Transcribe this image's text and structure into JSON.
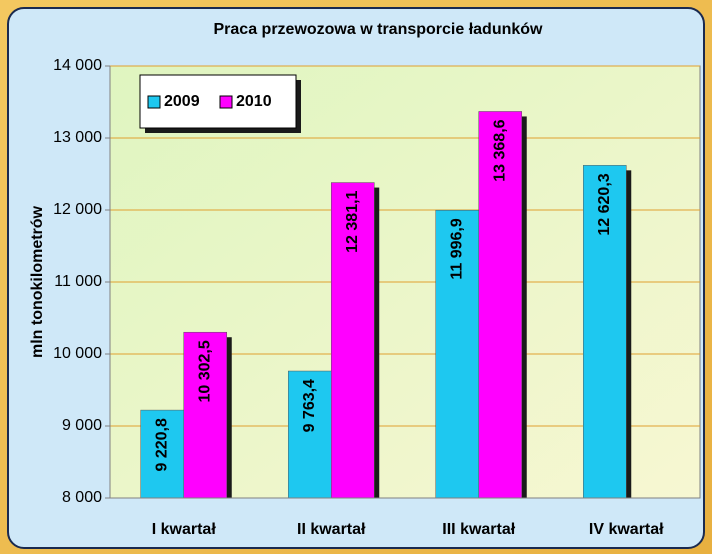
{
  "chart_data": {
    "type": "bar",
    "title": "Praca przewozowa w transporcie ładunków",
    "y_label": "mln tonokilometrów",
    "categories": [
      "I kwartał",
      "II kwartał",
      "III kwartał",
      "IV kwartał"
    ],
    "series": [
      {
        "name": "2009",
        "color": "#1ec8f0",
        "values": [
          9220.8,
          9763.4,
          11996.9,
          12620.3
        ],
        "value_labels": [
          "9 220,8",
          "9 763,4",
          "11 996,9",
          "12 620,3"
        ]
      },
      {
        "name": "2010",
        "color": "#ff00ff",
        "values": [
          10302.5,
          12381.1,
          13368.6,
          null
        ],
        "value_labels": [
          "10 302,5",
          "12 381,1",
          "13 368,6",
          null
        ]
      }
    ],
    "ylim": [
      8000,
      14000
    ],
    "yticks": [
      {
        "value": 8000,
        "label": "8 000"
      },
      {
        "value": 9000,
        "label": "9 000"
      },
      {
        "value": 10000,
        "label": "10 000"
      },
      {
        "value": 11000,
        "label": "11 000"
      },
      {
        "value": 12000,
        "label": "12 000"
      },
      {
        "value": 13000,
        "label": "13 000"
      },
      {
        "value": 14000,
        "label": "14 000"
      }
    ],
    "grid": true,
    "legend": "top-left"
  }
}
